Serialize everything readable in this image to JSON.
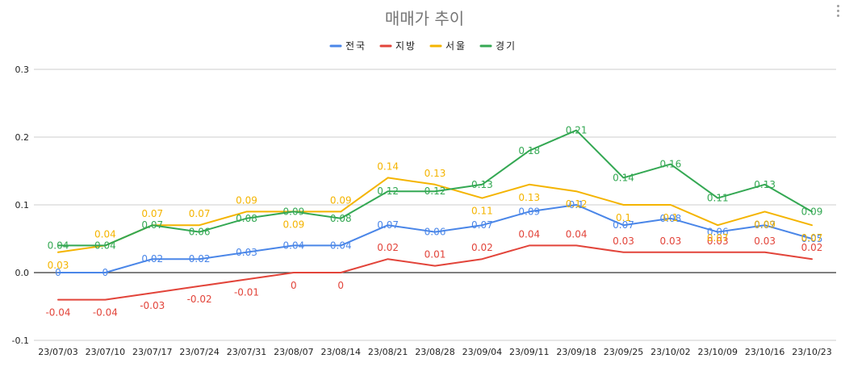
{
  "chart_data": {
    "type": "line",
    "title": "매매가 추이",
    "xlabel": "",
    "ylabel": "",
    "ylim": [
      -0.1,
      0.3
    ],
    "yticks": [
      -0.1,
      0.0,
      0.1,
      0.2,
      0.3
    ],
    "ytick_labels": [
      "-0.1",
      "0.0",
      "0.1",
      "0.2",
      "0.3"
    ],
    "grid": true,
    "legend": "top",
    "categories": [
      "23/07/03",
      "23/07/10",
      "23/07/17",
      "23/07/24",
      "23/07/31",
      "23/08/07",
      "23/08/14",
      "23/08/21",
      "23/08/28",
      "23/09/04",
      "23/09/11",
      "23/09/18",
      "23/09/25",
      "23/10/02",
      "23/10/09",
      "23/10/16",
      "23/10/23"
    ],
    "series": [
      {
        "name": "전국",
        "color": "#4a86e8",
        "values": [
          0,
          0,
          0.02,
          0.02,
          0.03,
          0.04,
          0.04,
          0.07,
          0.06,
          0.07,
          0.09,
          0.1,
          0.07,
          0.08,
          0.06,
          0.07,
          0.05
        ],
        "labels": [
          "0",
          "0",
          "0.02",
          "0.02",
          "0.03",
          "0.04",
          "0.04",
          "0.07",
          "0.06",
          "0.07",
          "0.09",
          "0.1",
          "0.07",
          "0.08",
          "0.06",
          "0.07",
          "0.05"
        ]
      },
      {
        "name": "지방",
        "color": "#e2443a",
        "values": [
          -0.04,
          -0.04,
          -0.03,
          -0.02,
          -0.01,
          0,
          0,
          0.02,
          0.01,
          0.02,
          0.04,
          0.04,
          0.03,
          0.03,
          0.03,
          0.03,
          0.02
        ],
        "labels": [
          "-0.04",
          "-0.04",
          "-0.03",
          "-0.02",
          "-0.01",
          "0",
          "0",
          "0.02",
          "0.01",
          "0.02",
          "0.04",
          "0.04",
          "0.03",
          "0.03",
          "0.03",
          "0.03",
          "0.02"
        ]
      },
      {
        "name": "서울",
        "color": "#f4b400",
        "values": [
          0.03,
          0.04,
          0.07,
          0.07,
          0.09,
          0.09,
          0.09,
          0.14,
          0.13,
          0.11,
          0.13,
          0.12,
          0.1,
          0.1,
          0.07,
          0.09,
          0.07
        ],
        "labels": [
          "0.03",
          "0.04",
          "0.07",
          "0.07",
          "0.09",
          "0.09",
          "0.09",
          "0.14",
          "0.13",
          "0.11",
          "0.13",
          "0.12",
          "0.1",
          "0.1",
          "0.07",
          "0.09",
          "0.07"
        ]
      },
      {
        "name": "경기",
        "color": "#34a853",
        "values": [
          0.04,
          0.04,
          0.07,
          0.06,
          0.08,
          0.09,
          0.08,
          0.12,
          0.12,
          0.13,
          0.18,
          0.21,
          0.14,
          0.16,
          0.11,
          0.13,
          0.09
        ],
        "labels": [
          "0.04",
          "0.04",
          "0.07",
          "0.06",
          "0.08",
          "0.09",
          "0.08",
          "0.12",
          "0.12",
          "0.13",
          "0.18",
          "0.21",
          "0.14",
          "0.16",
          "0.11",
          "0.13",
          "0.09"
        ]
      }
    ]
  }
}
